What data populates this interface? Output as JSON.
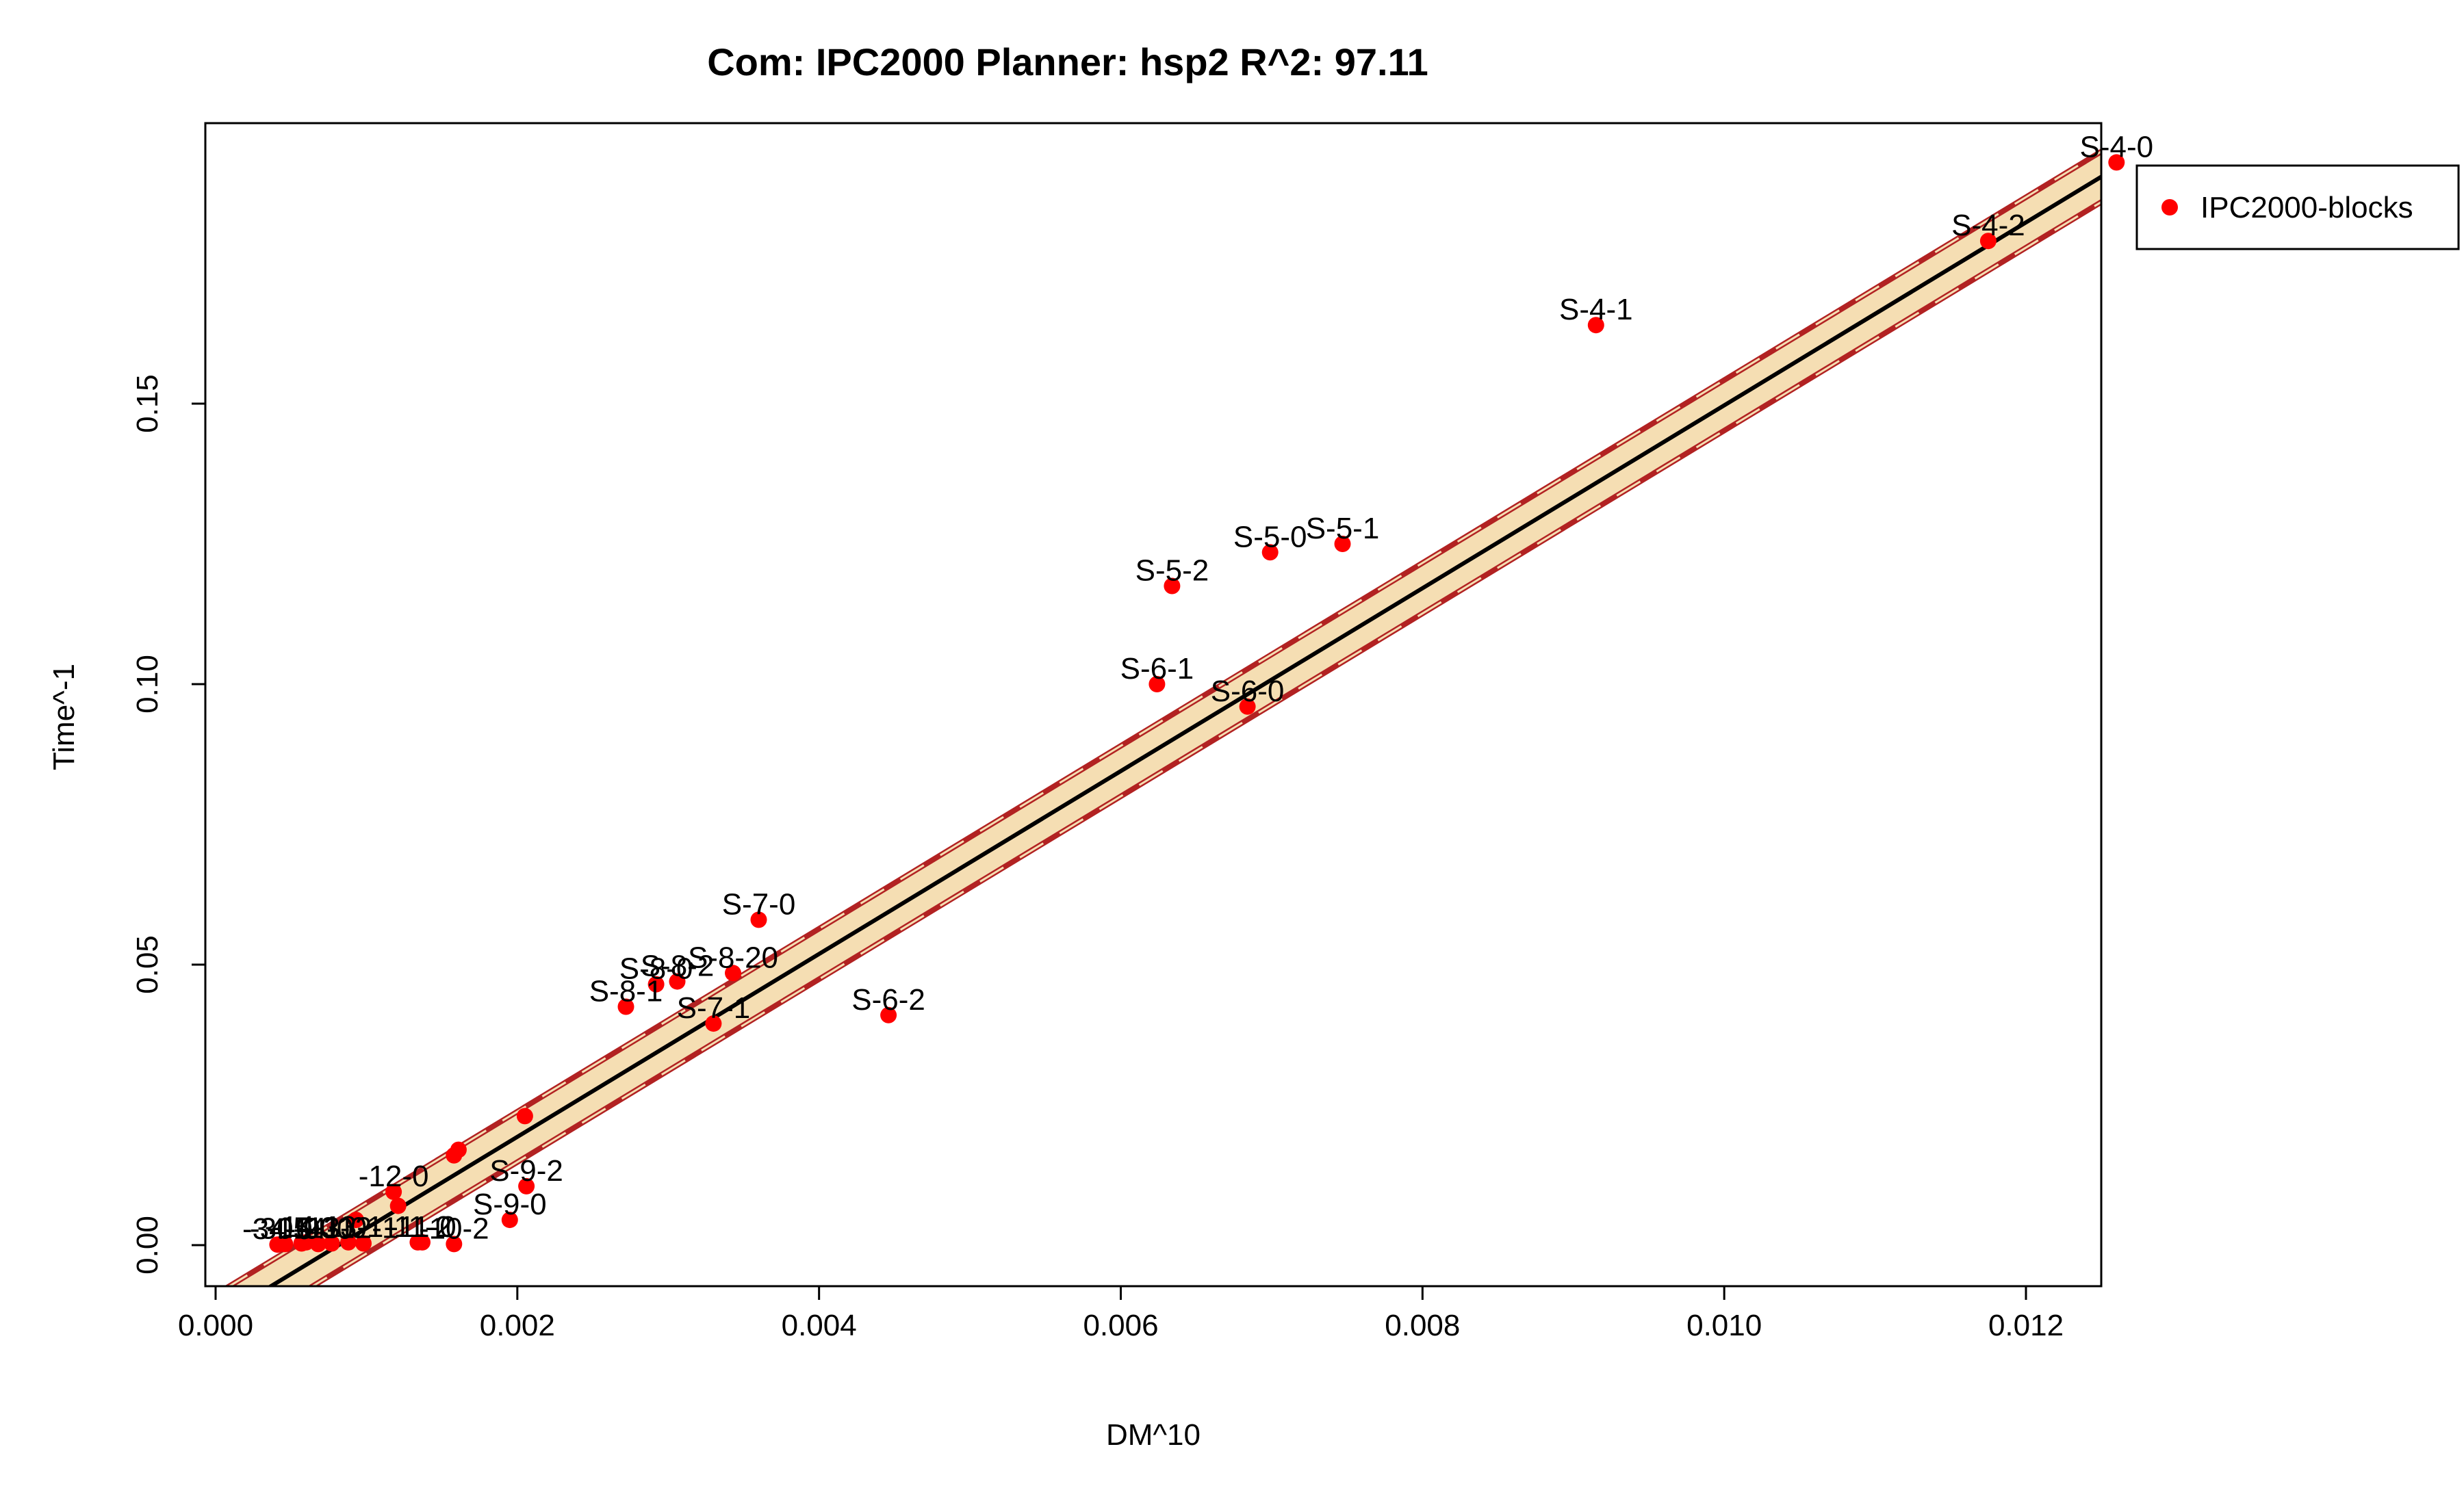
{
  "chart_data": {
    "type": "scatter",
    "title": "Com: IPC2000 Planner: hsp2 R^2: 97.11",
    "xlabel": "DM^10",
    "ylabel": "Time^-1",
    "xlim": [
      0,
      0.013
    ],
    "ylim": [
      -0.008,
      0.2
    ],
    "x_ticks": [
      {
        "value": 0.0,
        "label": "0.000"
      },
      {
        "value": 0.002,
        "label": "0.002"
      },
      {
        "value": 0.004,
        "label": "0.004"
      },
      {
        "value": 0.006,
        "label": "0.006"
      },
      {
        "value": 0.008,
        "label": "0.008"
      },
      {
        "value": 0.01,
        "label": "0.010"
      },
      {
        "value": 0.012,
        "label": "0.012"
      }
    ],
    "y_ticks": [
      {
        "value": 0.0,
        "label": "0.00"
      },
      {
        "value": 0.05,
        "label": "0.05"
      },
      {
        "value": 0.1,
        "label": "0.10"
      },
      {
        "value": 0.15,
        "label": "0.15"
      }
    ],
    "grid": false,
    "legend": {
      "placement": "outside-right-top",
      "entries": [
        {
          "name": "IPC2000-blocks",
          "color": "#ff0000"
        }
      ]
    },
    "fit_line": {
      "slope": 16.3,
      "intercept": -0.0133,
      "color": "#000000"
    },
    "band": {
      "offset": 0.0045,
      "fill": "#f5deb3",
      "border_color": "#b22222"
    },
    "series": [
      {
        "name": "IPC2000-blocks",
        "color": "#ff0000",
        "points": [
          {
            "x": 0.0126,
            "y": 0.193,
            "label": "S-4-0"
          },
          {
            "x": 0.01175,
            "y": 0.179,
            "label": "S-4-2"
          },
          {
            "x": 0.00915,
            "y": 0.164,
            "label": "S-4-1"
          },
          {
            "x": 0.00747,
            "y": 0.125,
            "label": "S-5-1"
          },
          {
            "x": 0.00699,
            "y": 0.1235,
            "label": "S-5-0"
          },
          {
            "x": 0.00634,
            "y": 0.1175,
            "label": "S-5-2"
          },
          {
            "x": 0.00624,
            "y": 0.1,
            "label": "S-6-1"
          },
          {
            "x": 0.00684,
            "y": 0.096,
            "label": "S-6-0"
          },
          {
            "x": 0.00446,
            "y": 0.041,
            "label": "S-6-2"
          },
          {
            "x": 0.0036,
            "y": 0.058,
            "label": "S-7-0"
          },
          {
            "x": 0.0033,
            "y": 0.0395,
            "label": "S-7-1"
          },
          {
            "x": 0.00343,
            "y": 0.0485,
            "label": "S-8-20"
          },
          {
            "x": 0.00306,
            "y": 0.047,
            "label": "S-8-2"
          },
          {
            "x": 0.00292,
            "y": 0.0465,
            "label": "S-8-0"
          },
          {
            "x": 0.00272,
            "y": 0.0425,
            "label": "S-8-1"
          },
          {
            "x": 0.00206,
            "y": 0.0105,
            "label": "S-9-2"
          },
          {
            "x": 0.00195,
            "y": 0.0045,
            "label": "S-9-0"
          },
          {
            "x": 0.00205,
            "y": 0.023,
            "label": ""
          },
          {
            "x": 0.00161,
            "y": 0.017,
            "label": ""
          },
          {
            "x": 0.00158,
            "y": 0.016,
            "label": ""
          },
          {
            "x": 0.00118,
            "y": 0.0095,
            "label": "-12-0"
          },
          {
            "x": 0.00121,
            "y": 0.007,
            "label": ""
          },
          {
            "x": 0.00093,
            "y": 0.0045,
            "label": ""
          },
          {
            "x": 0.00158,
            "y": 0.0002,
            "label": "-10-2"
          },
          {
            "x": 0.00137,
            "y": 0.0005,
            "label": "-11-0"
          },
          {
            "x": 0.00134,
            "y": 0.0005,
            "label": "-11-2"
          },
          {
            "x": 0.00098,
            "y": 0.0003,
            "label": "-12-1"
          },
          {
            "x": 0.00088,
            "y": 0.0005,
            "label": "-13-1"
          },
          {
            "x": 0.00077,
            "y": 0.0003,
            "label": "-13-0"
          },
          {
            "x": 0.00068,
            "y": 0.0002,
            "label": "-14-0"
          },
          {
            "x": 0.0006,
            "y": 0.0005,
            "label": "-14-1"
          },
          {
            "x": 0.00057,
            "y": 0.0003,
            "label": "-15-0"
          },
          {
            "x": 0.00046,
            "y": 0.0002,
            "label": "-30-0"
          },
          {
            "x": 0.00041,
            "y": 0.0001,
            "label": "-34-0"
          }
        ]
      }
    ]
  }
}
